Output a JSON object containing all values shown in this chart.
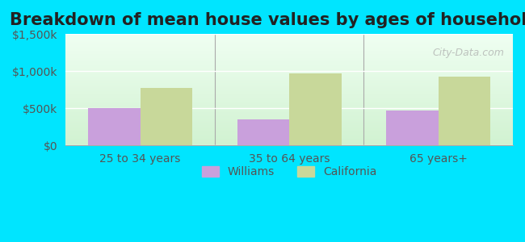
{
  "title": "Breakdown of mean house values by ages of householders",
  "categories": [
    "25 to 34 years",
    "35 to 64 years",
    "65 years+"
  ],
  "williams_values": [
    500000,
    350000,
    470000
  ],
  "california_values": [
    770000,
    965000,
    920000
  ],
  "williams_color": "#c9a0dc",
  "california_color": "#c8d89a",
  "ylim": [
    0,
    1500000
  ],
  "yticks": [
    0,
    500000,
    1000000,
    1500000
  ],
  "ytick_labels": [
    "$0",
    "$500k",
    "$1,000k",
    "$1,500k"
  ],
  "background_outer": "#00e5ff",
  "background_inner_top": "#e8f5e9",
  "background_inner_bottom": "#f0fff0",
  "bar_width": 0.35,
  "legend_williams": "Williams",
  "legend_california": "California",
  "watermark": "City-Data.com",
  "title_fontsize": 15,
  "tick_fontsize": 10,
  "legend_fontsize": 10
}
